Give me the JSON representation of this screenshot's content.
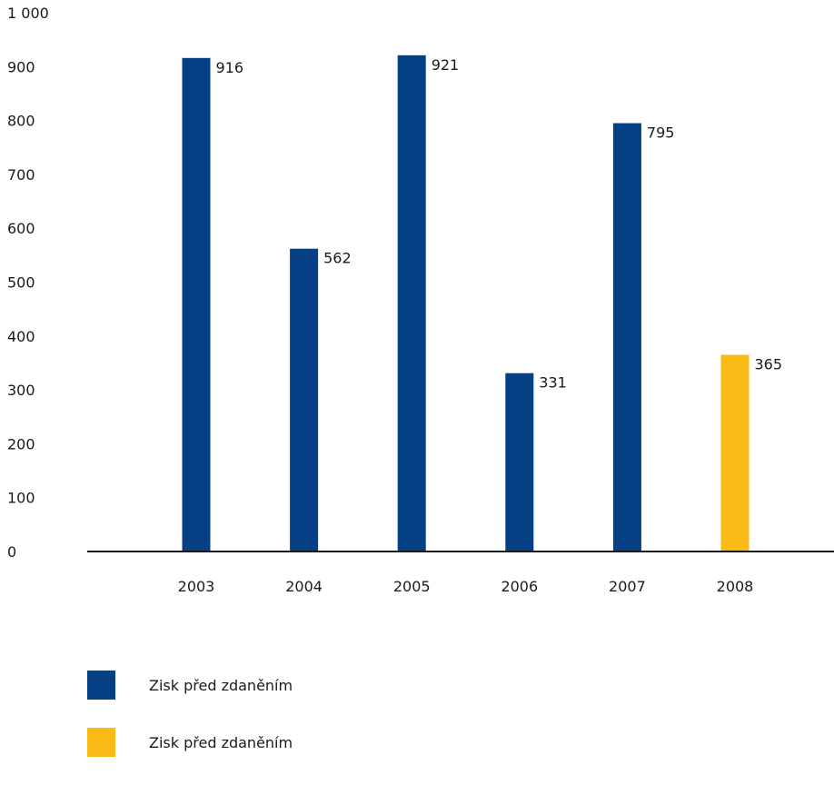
{
  "chart_data": {
    "type": "bar",
    "categories": [
      "2003",
      "2004",
      "2005",
      "2006",
      "2007",
      "2008"
    ],
    "values": [
      916,
      562,
      921,
      331,
      795,
      365
    ],
    "data_labels": [
      "916",
      "562",
      "921",
      "331",
      "795",
      "365"
    ],
    "bar_colors": [
      "#053f84",
      "#053f84",
      "#053f84",
      "#053f84",
      "#053f84",
      "#fbbb16"
    ],
    "y_ticks": [
      {
        "value": 0,
        "label": "0"
      },
      {
        "value": 100,
        "label": "100"
      },
      {
        "value": 200,
        "label": "200"
      },
      {
        "value": 300,
        "label": "300"
      },
      {
        "value": 400,
        "label": "400"
      },
      {
        "value": 500,
        "label": "500"
      },
      {
        "value": 600,
        "label": "600"
      },
      {
        "value": 700,
        "label": "700"
      },
      {
        "value": 800,
        "label": "800"
      },
      {
        "value": 900,
        "label": "900"
      },
      {
        "value": 1000,
        "label": "1 000"
      }
    ],
    "ylim": [
      0,
      1000
    ],
    "grid": false,
    "title": "",
    "xlabel": "",
    "ylabel": "",
    "legend_position": "bottom-left",
    "legend": [
      {
        "label": "Zisk před zdaněním",
        "color": "#053f84"
      },
      {
        "label": "Zisk před zdaněním",
        "color": "#fbbb16"
      }
    ],
    "colors": {
      "primary": "#053f84",
      "highlight": "#fbbb16",
      "axis": "#1a1a1a"
    }
  }
}
